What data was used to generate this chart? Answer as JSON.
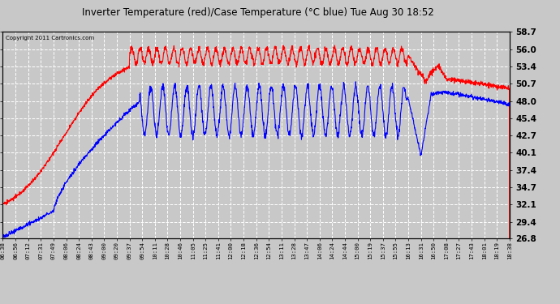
{
  "title": "Inverter Temperature (red)/Case Temperature (°C blue) Tue Aug 30 18:52",
  "copyright": "Copyright 2011 Cartronics.com",
  "ylabel_right_min": 26.8,
  "ylabel_right_max": 58.7,
  "yticks": [
    26.8,
    29.4,
    32.1,
    34.7,
    37.4,
    40.1,
    42.7,
    45.4,
    48.0,
    50.7,
    53.4,
    56.0,
    58.7
  ],
  "bg_color": "#c8c8c8",
  "plot_bg_color": "#c8c8c8",
  "grid_color": "#ffffff",
  "red_color": "#ff0000",
  "blue_color": "#0000ff",
  "x_tick_labels": [
    "06:38",
    "06:56",
    "07:12",
    "07:31",
    "07:49",
    "08:06",
    "08:24",
    "08:43",
    "09:00",
    "09:20",
    "09:37",
    "09:54",
    "10:11",
    "10:28",
    "10:46",
    "11:05",
    "11:25",
    "11:41",
    "12:00",
    "12:18",
    "12:36",
    "12:54",
    "13:11",
    "13:28",
    "13:47",
    "14:06",
    "14:24",
    "14:44",
    "15:00",
    "15:19",
    "15:37",
    "15:55",
    "16:13",
    "16:31",
    "16:50",
    "17:08",
    "17:27",
    "17:43",
    "18:01",
    "18:19",
    "18:38"
  ]
}
